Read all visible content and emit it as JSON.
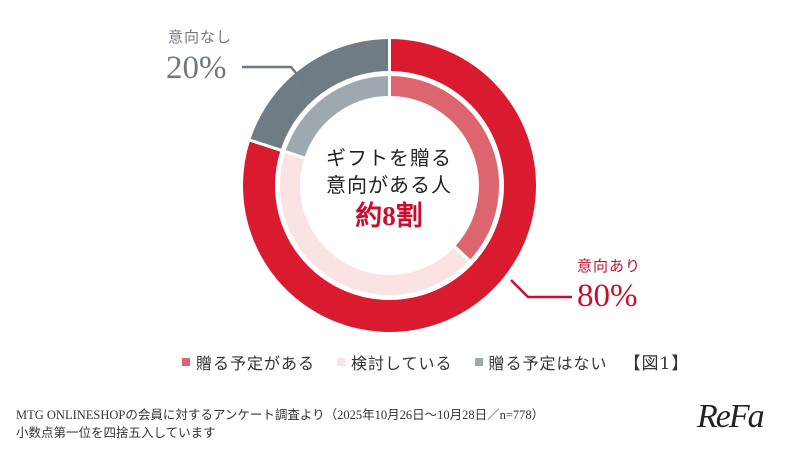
{
  "chart_data": {
    "type": "pie",
    "subtype": "nested-donut",
    "title": "【図1】",
    "center_text": [
      "ギフトを贈る",
      "意向がある人"
    ],
    "center_highlight": "約8割",
    "outer_ring": {
      "categories": [
        "意向あり",
        "意向なし"
      ],
      "values": [
        80,
        20
      ],
      "colors": [
        "#DA1A2E",
        "#707C84"
      ]
    },
    "inner_ring": {
      "categories": [
        "贈る予定がある",
        "検討している",
        "贈る予定はない"
      ],
      "values": [
        37,
        43,
        20
      ],
      "colors": [
        "#DC6570",
        "#FBE3E4",
        "#9EA8AF"
      ]
    },
    "annotations": [
      {
        "label": "意向なし",
        "value": "20%",
        "color": "#6E7A82"
      },
      {
        "label": "意向あり",
        "value": "80%",
        "color": "#C8102E"
      }
    ],
    "legend": [
      "贈る予定がある",
      "検討している",
      "贈る予定はない"
    ],
    "legend_position": "bottom"
  },
  "labels": {
    "no_intent": {
      "caption": "意向なし",
      "value": "20%"
    },
    "intent": {
      "caption": "意向あり",
      "value": "80%"
    },
    "center": {
      "line1": "ギフトを贈る",
      "line2": "意向がある人",
      "highlight": "約8割"
    }
  },
  "legend": {
    "items": [
      {
        "label": "贈る予定がある",
        "color": "#DC6570"
      },
      {
        "label": "検討している",
        "color": "#FBE3E4"
      },
      {
        "label": "贈る予定はない",
        "color": "#9EA8AF"
      }
    ],
    "figure_label": "【図1】"
  },
  "footnote": {
    "line1": "MTG ONLINESHOPの会員に対するアンケート調査より（2025年10月26日〜10月28日／n=778）",
    "line2": "小数点第一位を四捨五入しています"
  },
  "brand": {
    "logo_text": "ReFa"
  },
  "colors": {
    "accent_red": "#DA1A2E",
    "dark_red_text": "#C8102E",
    "gray_text": "#6E7A82"
  }
}
